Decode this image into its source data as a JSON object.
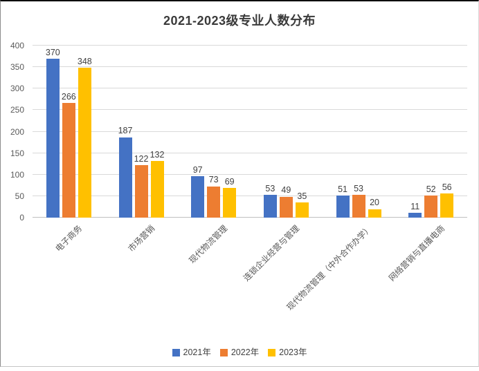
{
  "chart_data": {
    "type": "bar",
    "title": "2021-2023级专业人数分布",
    "categories": [
      "电子商务",
      "市场营销",
      "现代物流管理",
      "连锁企业经营与管理",
      "现代物流管理（中外合作办学）",
      "网络营销与直播电商"
    ],
    "series": [
      {
        "name": "2021年",
        "color": "#4472C4",
        "values": [
          370,
          187,
          97,
          53,
          51,
          11
        ]
      },
      {
        "name": "2022年",
        "color": "#ED7D31",
        "values": [
          266,
          122,
          73,
          49,
          53,
          52
        ]
      },
      {
        "name": "2023年",
        "color": "#FFC000",
        "values": [
          348,
          132,
          69,
          35,
          20,
          56
        ]
      }
    ],
    "ylim": [
      0,
      400
    ],
    "ytick_step": 50,
    "yticks": [
      0,
      50,
      100,
      150,
      200,
      250,
      300,
      350,
      400
    ],
    "grid": true,
    "legend_position": "bottom",
    "xlabel": "",
    "ylabel": ""
  },
  "colors": {
    "grid": "#D9D9D9",
    "axis_line": "#BFBFBF",
    "axis_text": "#595959",
    "data_label_text": "#404040",
    "title_text": "#3A3A3A",
    "background": "#FFFFFF"
  }
}
